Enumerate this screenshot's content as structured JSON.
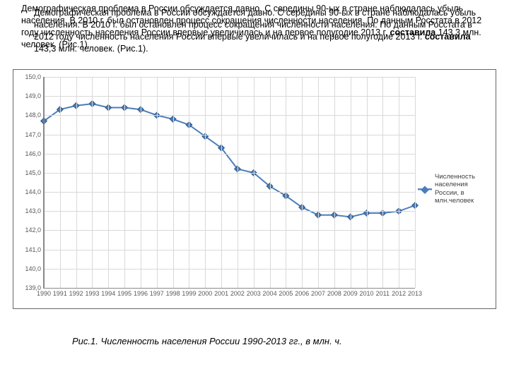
{
  "intro": {
    "text_a": "Демографическая проблема в России обсуждается давно. С середины 90-ых в стране наблюдалась убыль населения. В 2010 г. был остановлен процесс сокращения численности населения. По данным Росстата в 2012 году численность населения России впервые увеличилась и на первое полугодие 2013 г. ",
    "bold": "составила",
    "text_b": " 143,3 млн. человек. (Рис.1).",
    "text2_a": "Демографическая проблема в России обсуждается давно. С середины 90-ых в стране наблюдалась убыль населения. В 2010 г. был остановлен процесс сокращения численности населения. По данным Росстата в 2012 году численность населения России впервые увеличилась и на первое полугодие 2013 г. ",
    "bold2": "составила",
    "text2_b": " 143,3 млн. человек. (Рис.1)."
  },
  "chart": {
    "type": "line",
    "legend_label": "Численность населения России, в млн.человек",
    "line_color": "#4A7EBB",
    "marker_fill": "#4A7EBB",
    "marker_stroke": "#385D8A",
    "grid_color": "#D9D9D9",
    "axis_color": "#888888",
    "tick_color": "#595959",
    "background": "#ffffff",
    "ylim": [
      139.0,
      150.0
    ],
    "ytick_step": 1.0,
    "yticks": [
      "139,0",
      "140,0",
      "141,0",
      "142,0",
      "143,0",
      "144,0",
      "145,0",
      "146,0",
      "147,0",
      "148,0",
      "149,0",
      "150,0"
    ],
    "xticks": [
      "1990",
      "1991",
      "1992",
      "1993",
      "1994",
      "1995",
      "1996",
      "1997",
      "1998",
      "1999",
      "2000",
      "2001",
      "2002",
      "2003",
      "2004",
      "2005",
      "2006",
      "2007",
      "2008",
      "2009",
      "2010",
      "2011",
      "2012",
      "2013"
    ],
    "values": [
      147.7,
      148.3,
      148.5,
      148.6,
      148.4,
      148.4,
      148.3,
      148.0,
      147.8,
      147.5,
      146.9,
      146.3,
      145.2,
      145.0,
      144.3,
      143.8,
      143.2,
      142.8,
      142.8,
      142.7,
      142.9,
      142.9,
      143.0,
      143.3
    ],
    "line_width": 2,
    "marker_size": 6,
    "tick_fontsize": 9
  },
  "caption": "Рис.1. Численность населения России 1990-2013 гг., в млн. ч."
}
